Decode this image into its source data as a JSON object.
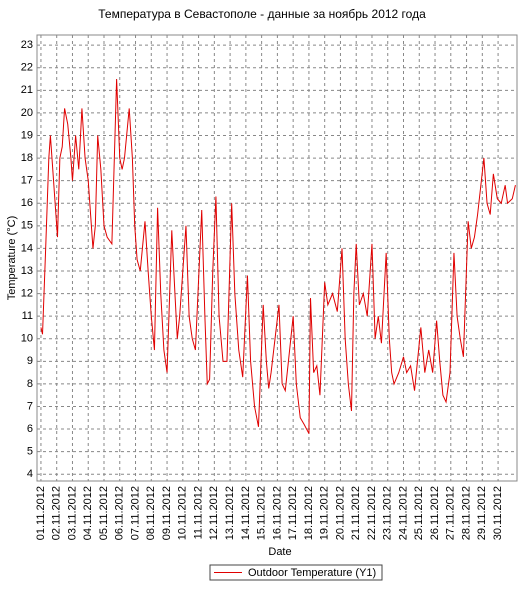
{
  "chart_data": {
    "type": "line",
    "title": "Температура в Севастополе - данные за ноябрь 2012 года",
    "xlabel": "Date",
    "ylabel": "Temperature (°C)",
    "x": [
      1.0,
      1.1,
      1.3,
      1.5,
      1.6,
      1.8,
      2.0,
      2.05,
      2.2,
      2.35,
      2.5,
      2.7,
      2.9,
      3.0,
      3.2,
      3.4,
      3.6,
      3.8,
      4.0,
      4.2,
      4.3,
      4.45,
      4.6,
      4.8,
      5.0,
      5.2,
      5.5,
      5.8,
      6.0,
      6.15,
      6.3,
      6.6,
      6.8,
      6.95,
      7.1,
      7.3,
      7.6,
      7.8,
      8.0,
      8.2,
      8.4,
      8.6,
      8.8,
      9.0,
      9.3,
      9.5,
      9.65,
      9.8,
      10.2,
      10.4,
      10.6,
      10.8,
      11.2,
      11.4,
      11.55,
      11.7,
      11.9,
      12.1,
      12.3,
      12.55,
      12.8,
      13.1,
      13.3,
      13.55,
      13.8,
      14.1,
      14.3,
      14.55,
      14.8,
      15.1,
      15.3,
      15.45,
      15.6,
      16.1,
      16.3,
      16.5,
      16.7,
      17.0,
      17.2,
      17.45,
      17.7,
      18.0,
      18.1,
      18.3,
      18.5,
      18.7,
      19.0,
      19.2,
      19.5,
      19.8,
      20.1,
      20.3,
      20.5,
      20.7,
      20.85,
      21.0,
      21.2,
      21.45,
      21.7,
      22.0,
      22.2,
      22.4,
      22.6,
      22.9,
      23.1,
      23.25,
      23.4,
      23.7,
      24.0,
      24.2,
      24.45,
      24.7,
      25.1,
      25.35,
      25.6,
      25.85,
      26.1,
      26.3,
      26.5,
      26.7,
      26.95,
      27.2,
      27.4,
      27.6,
      27.8,
      28.1,
      28.3,
      28.5,
      28.7,
      29.1,
      29.3,
      29.5,
      29.7,
      29.95,
      30.2,
      30.45,
      30.6,
      30.9,
      31.1
    ],
    "series": [
      {
        "name": "Outdoor Temperature (Y1)",
        "color": "#e00000",
        "values": [
          10.5,
          10.2,
          14,
          18,
          19,
          17,
          15,
          14.5,
          18,
          18.5,
          20.2,
          19.5,
          18,
          17,
          19,
          17.5,
          20.2,
          18,
          17,
          15,
          14,
          15,
          19,
          17.5,
          15,
          14.5,
          14.2,
          21.5,
          18,
          17.5,
          18,
          20.2,
          18,
          15,
          13.5,
          13,
          15.2,
          13,
          11,
          9.5,
          15.8,
          12,
          9.5,
          8.5,
          14.8,
          12,
          10,
          11,
          15,
          11,
          10,
          9.5,
          15.7,
          11,
          8,
          8.2,
          13,
          16.3,
          11,
          9,
          9,
          16,
          12,
          9.5,
          8.3,
          12.8,
          9,
          7,
          6.1,
          11.5,
          9,
          7.8,
          8.5,
          11.5,
          8,
          7.7,
          9,
          11,
          8,
          6.5,
          6.2,
          5.8,
          11.8,
          8.5,
          8.8,
          7.5,
          12.5,
          11.5,
          12,
          11.2,
          14,
          10,
          8,
          6.8,
          12,
          14.2,
          11.5,
          12,
          11,
          14.2,
          10,
          11,
          9.8,
          13.8,
          10,
          8.5,
          8,
          8.5,
          9.2,
          8.5,
          8.8,
          7.7,
          10.5,
          8.5,
          9.5,
          8.5,
          10.8,
          9,
          7.5,
          7.2,
          8.5,
          13.8,
          11,
          10,
          9.2,
          15.2,
          14,
          14.5,
          15.5,
          18,
          16,
          15.5,
          17.3,
          16.2,
          16,
          16.8,
          16,
          16.2,
          16.8
        ]
      }
    ],
    "xlim": [
      0.75,
      31.2
    ],
    "ylim": [
      3.7,
      23.45
    ],
    "xticks": [
      {
        "value": 1,
        "label": "01.11.2012"
      },
      {
        "value": 2,
        "label": "02.11.2012"
      },
      {
        "value": 3,
        "label": "03.11.2012"
      },
      {
        "value": 4,
        "label": "04.11.2012"
      },
      {
        "value": 5,
        "label": "05.11.2012"
      },
      {
        "value": 6,
        "label": "06.11.2012"
      },
      {
        "value": 7,
        "label": "07.11.2012"
      },
      {
        "value": 8,
        "label": "08.11.2012"
      },
      {
        "value": 9,
        "label": "09.11.2012"
      },
      {
        "value": 10,
        "label": "10.11.2012"
      },
      {
        "value": 11,
        "label": "11.11.2012"
      },
      {
        "value": 12,
        "label": "12.11.2012"
      },
      {
        "value": 13,
        "label": "13.11.2012"
      },
      {
        "value": 14,
        "label": "14.11.2012"
      },
      {
        "value": 15,
        "label": "15.11.2012"
      },
      {
        "value": 16,
        "label": "16.11.2012"
      },
      {
        "value": 17,
        "label": "17.11.2012"
      },
      {
        "value": 18,
        "label": "18.11.2012"
      },
      {
        "value": 19,
        "label": "19.11.2012"
      },
      {
        "value": 20,
        "label": "20.11.2012"
      },
      {
        "value": 21,
        "label": "21.11.2012"
      },
      {
        "value": 22,
        "label": "22.11.2012"
      },
      {
        "value": 23,
        "label": "23.11.2012"
      },
      {
        "value": 24,
        "label": "24.11.2012"
      },
      {
        "value": 25,
        "label": "25.11.2012"
      },
      {
        "value": 26,
        "label": "26.11.2012"
      },
      {
        "value": 27,
        "label": "27.11.2012"
      },
      {
        "value": 28,
        "label": "28.11.2012"
      },
      {
        "value": 29,
        "label": "29.11.2012"
      },
      {
        "value": 30,
        "label": "30.11.2012"
      }
    ],
    "yticks": [
      4,
      5,
      6,
      7,
      8,
      9,
      10,
      11,
      12,
      13,
      14,
      15,
      16,
      17,
      18,
      19,
      20,
      21,
      22,
      23
    ],
    "grid": true
  }
}
